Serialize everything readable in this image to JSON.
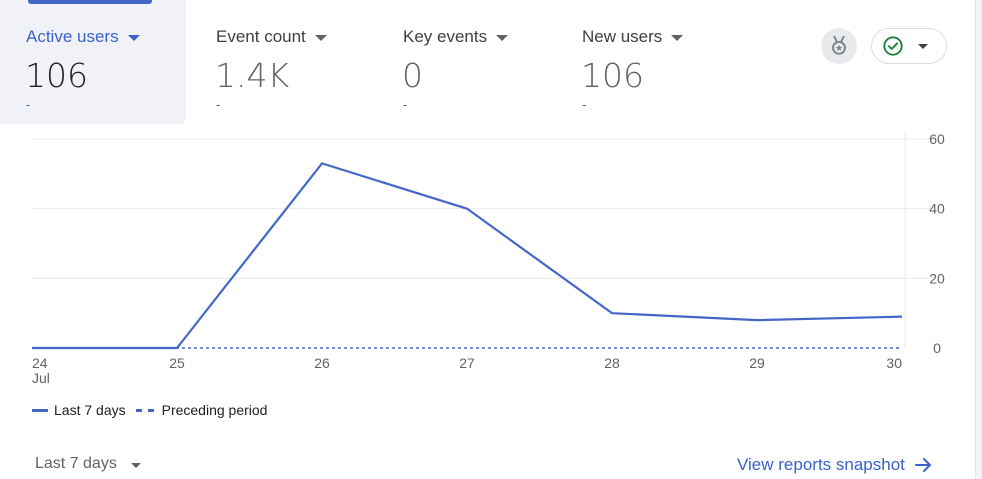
{
  "metrics": [
    {
      "label": "Active users",
      "value": "106",
      "change": "-",
      "active": true
    },
    {
      "label": "Event count",
      "value": "1.4K",
      "change": "-",
      "active": false
    },
    {
      "label": "Key events",
      "value": "0",
      "change": "-",
      "active": false
    },
    {
      "label": "New users",
      "value": "106",
      "change": "-",
      "active": false
    }
  ],
  "icons": {
    "insights": "insights-medal-icon",
    "status": "check-circle-icon",
    "status_dropdown": "chevron-down-icon",
    "link_arrow": "arrow-right-icon"
  },
  "colors": {
    "accent": "#4467c7",
    "status_check": "#188038",
    "link": "#3a62c9"
  },
  "chart_data": {
    "type": "line",
    "x": [
      "24",
      "25",
      "26",
      "27",
      "28",
      "29",
      "30"
    ],
    "x_sublabels": [
      "Jul",
      "",
      "",
      "",
      "",
      "",
      ""
    ],
    "series": [
      {
        "name": "Last 7 days",
        "style": "solid",
        "values": [
          0,
          0,
          53,
          40,
          10,
          8,
          9
        ]
      },
      {
        "name": "Preceding period",
        "style": "dashed",
        "values": [
          0,
          0,
          0,
          0,
          0,
          0,
          0
        ]
      }
    ],
    "y_ticks": [
      0,
      20,
      40,
      60
    ],
    "ylim": [
      0,
      60
    ],
    "y_axis_side": "right",
    "grid": true,
    "legend": "bottom-left"
  },
  "legend": {
    "current": "Last 7 days",
    "previous": "Preceding period"
  },
  "footer": {
    "date_range": "Last 7 days",
    "link": "View reports snapshot"
  }
}
